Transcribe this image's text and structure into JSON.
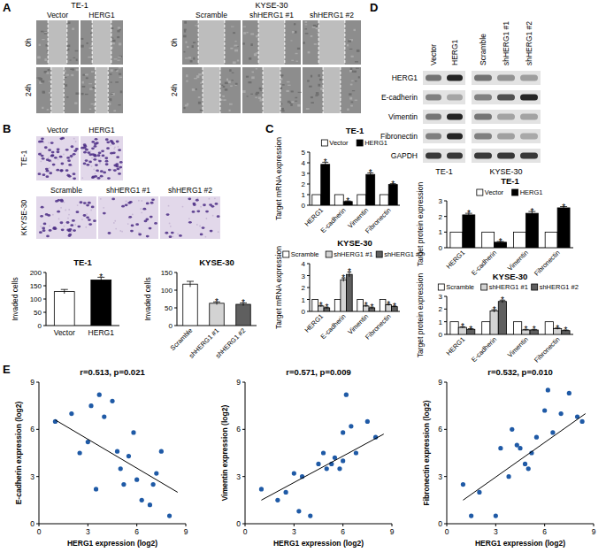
{
  "panel_labels": [
    "A",
    "B",
    "C",
    "D",
    "E"
  ],
  "wound": {
    "groups": [
      {
        "title": "TE-1",
        "columns": [
          "Vector",
          "HERG1"
        ]
      },
      {
        "title": "KYSE-30",
        "columns": [
          "Scramble",
          "shHERG1 #1",
          "shHERG1 #2"
        ]
      }
    ],
    "rows": [
      "0h",
      "24h"
    ]
  },
  "transwell": {
    "rows": [
      {
        "label": "TE-1",
        "columns": [
          "Vector",
          "HERG1"
        ]
      },
      {
        "label": "KKYSE-30",
        "columns": [
          "Scramble",
          "shHERG1 #1",
          "shHERG1 #2"
        ]
      }
    ]
  },
  "western": {
    "groups": [
      {
        "title": "TE-1",
        "lanes": [
          "Vector",
          "HERG1"
        ]
      },
      {
        "title": "KYSE-30",
        "lanes": [
          "Scramble",
          "shHERG1 #1",
          "shHERG1 #2"
        ]
      }
    ],
    "proteins": [
      "HERG1",
      "E-cadherin",
      "Vimentin",
      "Fibronectin",
      "GAPDH"
    ]
  },
  "chart_data": [
    {
      "type": "bar",
      "title": "TE-1",
      "y_label": "Invaded cells",
      "categories": [
        "Vector",
        "HERG1"
      ],
      "values": [
        128,
        172
      ],
      "errors": [
        8,
        10
      ],
      "colors": [
        "#ffffff",
        "#000000"
      ],
      "significance": [
        null,
        "*"
      ],
      "ylim": [
        0,
        200
      ],
      "yticks": [
        0,
        50,
        100,
        150,
        200
      ]
    },
    {
      "type": "bar",
      "title": "KYSE-30",
      "y_label": "Invaded cells",
      "categories": [
        "Scramble",
        "shHERG1 #1",
        "shHERG1 #2"
      ],
      "values": [
        117,
        63,
        60
      ],
      "errors": [
        8,
        4,
        4
      ],
      "colors": [
        "#ffffff",
        "#d3d3d3",
        "#5f5f5f"
      ],
      "significance": [
        null,
        "*",
        "*"
      ],
      "ylim": [
        0,
        150
      ],
      "yticks": [
        0,
        50,
        100,
        150
      ]
    },
    {
      "type": "bar",
      "title": "TE-1",
      "y_label": "Target mRNA expression",
      "categories": [
        "HERG1",
        "E-cadherin",
        "Vimentin",
        "Fibronectin"
      ],
      "legend": "top",
      "ylim": [
        0,
        5
      ],
      "yticks": [
        0,
        1,
        2,
        3,
        4,
        5
      ],
      "series": [
        {
          "name": "Vector",
          "color": "#ffffff",
          "values": [
            1,
            1,
            1,
            1
          ]
        },
        {
          "name": "HERG1",
          "color": "#000000",
          "values": [
            3.85,
            0.35,
            2.9,
            1.95
          ],
          "errors": [
            0.2,
            0.05,
            0.15,
            0.08
          ],
          "significance": [
            "*",
            "*",
            "*",
            "*"
          ]
        }
      ]
    },
    {
      "type": "bar",
      "title": "KYSE-30",
      "y_label": "Target mRNA expression",
      "categories": [
        "HERG1",
        "E-cadherin",
        "Vimentin",
        "Fibronectin"
      ],
      "legend": "top",
      "ylim": [
        0,
        4
      ],
      "yticks": [
        0,
        1,
        2,
        3,
        4
      ],
      "series": [
        {
          "name": "Scramble",
          "color": "#ffffff",
          "values": [
            1,
            1,
            1,
            1
          ]
        },
        {
          "name": "shHERG1 #1",
          "color": "#d3d3d3",
          "values": [
            0.45,
            2.65,
            0.45,
            0.55
          ],
          "errors": [
            0.05,
            0.15,
            0.05,
            0.05
          ],
          "significance": [
            "*",
            "*",
            "*",
            "*"
          ]
        },
        {
          "name": "shHERG1 #2",
          "color": "#5f5f5f",
          "values": [
            0.3,
            3.1,
            0.3,
            0.4
          ],
          "errors": [
            0.05,
            0.2,
            0.05,
            0.05
          ],
          "significance": [
            "*",
            "*",
            "*",
            "*"
          ]
        }
      ]
    },
    {
      "type": "bar",
      "title": "TE-1",
      "y_label": "Target protein expression",
      "categories": [
        "HERG1",
        "E-cadherin",
        "Vimentin",
        "Fibronectin"
      ],
      "legend": "top",
      "ylim": [
        0,
        3
      ],
      "yticks": [
        0,
        1,
        2,
        3
      ],
      "series": [
        {
          "name": "Vector",
          "color": "#ffffff",
          "values": [
            1,
            1,
            1,
            1
          ]
        },
        {
          "name": "HERG1",
          "color": "#000000",
          "values": [
            2.1,
            0.35,
            2.2,
            2.55
          ],
          "errors": [
            0.1,
            0.05,
            0.12,
            0.08
          ],
          "significance": [
            "*",
            "*",
            "*",
            "*"
          ]
        }
      ]
    },
    {
      "type": "bar",
      "title": "KYSE-30",
      "y_label": "Target protein expression",
      "categories": [
        "HERG1",
        "E-cadherin",
        "Vimentin",
        "Fibronectin"
      ],
      "legend": "top",
      "ylim": [
        0,
        3
      ],
      "yticks": [
        0,
        1,
        2,
        3
      ],
      "series": [
        {
          "name": "Scramble",
          "color": "#ffffff",
          "values": [
            1,
            1,
            1,
            1
          ]
        },
        {
          "name": "shHERG1 #1",
          "color": "#d3d3d3",
          "values": [
            0.55,
            1.85,
            0.35,
            0.45
          ],
          "errors": [
            0.05,
            0.1,
            0.04,
            0.05
          ],
          "significance": [
            "*",
            "*",
            "*",
            "*"
          ]
        },
        {
          "name": "shHERG1 #2",
          "color": "#5f5f5f",
          "values": [
            0.4,
            2.6,
            0.35,
            0.3
          ],
          "errors": [
            0.05,
            0.1,
            0.04,
            0.04
          ],
          "significance": [
            "*",
            "*",
            "*",
            "*"
          ]
        }
      ]
    },
    {
      "type": "scatter",
      "title": "r=0.513, p=0.021",
      "x_label": "HERG1 expression (log2)",
      "y_label": "E-cadherin expression (log2)",
      "color": "#1f5aa6",
      "xlim": [
        0,
        9
      ],
      "ylim": [
        0,
        9
      ],
      "xticks": [
        0,
        3,
        6,
        9
      ],
      "yticks": [
        0,
        3,
        6,
        9
      ],
      "x": [
        1,
        2,
        2.5,
        3,
        3.2,
        3.5,
        3.7,
        4,
        4.5,
        4.8,
        5,
        5.2,
        5.5,
        5.8,
        6,
        6.3,
        6.8,
        7,
        7.2,
        7.5,
        8
      ],
      "y": [
        6.5,
        7,
        4.5,
        5.2,
        7.5,
        2.2,
        8.2,
        6.8,
        7.8,
        4.6,
        3.5,
        2.5,
        4.3,
        5.8,
        2.8,
        1.5,
        1.2,
        2.5,
        3.2,
        4.6,
        0.5
      ],
      "fit_line": {
        "x": [
          1,
          8.5
        ],
        "y": [
          6.6,
          2
        ]
      }
    },
    {
      "type": "scatter",
      "title": "r=0.571, p=0.009",
      "x_label": "HERG1 expression (log2)",
      "y_label": "Vimentin expression (log2)",
      "color": "#1f5aa6",
      "xlim": [
        0,
        9
      ],
      "ylim": [
        0,
        9
      ],
      "xticks": [
        0,
        3,
        6,
        9
      ],
      "yticks": [
        0,
        3,
        6,
        9
      ],
      "x": [
        1,
        2,
        2.5,
        3,
        3.3,
        3.5,
        4,
        4.5,
        4.8,
        5,
        5.3,
        5.5,
        5.8,
        6,
        6,
        6.2,
        6.5,
        6.8,
        7.5,
        8
      ],
      "y": [
        2.2,
        1.5,
        2,
        3.2,
        0.8,
        3,
        0.5,
        3.8,
        4.5,
        3.5,
        3.8,
        4.2,
        3.5,
        4,
        5.8,
        8.2,
        6.2,
        4.5,
        6.5,
        5.5
      ],
      "fit_line": {
        "x": [
          1,
          8.5
        ],
        "y": [
          1.5,
          5.7
        ]
      }
    },
    {
      "type": "scatter",
      "title": "r=0.532, p=0.010",
      "x_label": "HERG1 expression (log2)",
      "y_label": "Fibronectin expression (log2)",
      "color": "#1f5aa6",
      "xlim": [
        0,
        9
      ],
      "ylim": [
        0,
        9
      ],
      "xticks": [
        0,
        3,
        6,
        9
      ],
      "yticks": [
        0,
        3,
        6,
        9
      ],
      "x": [
        1,
        1.5,
        2,
        3,
        3.3,
        3.8,
        4,
        4.3,
        4.5,
        4.8,
        5,
        5.2,
        5.5,
        6,
        6.2,
        6.5,
        7,
        7.5,
        8,
        8.3
      ],
      "y": [
        2.5,
        0.5,
        2,
        0.5,
        4.8,
        3,
        6,
        5,
        4.8,
        3.8,
        3.5,
        4.5,
        5.5,
        7.2,
        8.5,
        5.8,
        7,
        8.3,
        6.8,
        6.5
      ],
      "fit_line": {
        "x": [
          1,
          8.5
        ],
        "y": [
          1.5,
          7
        ]
      }
    }
  ]
}
